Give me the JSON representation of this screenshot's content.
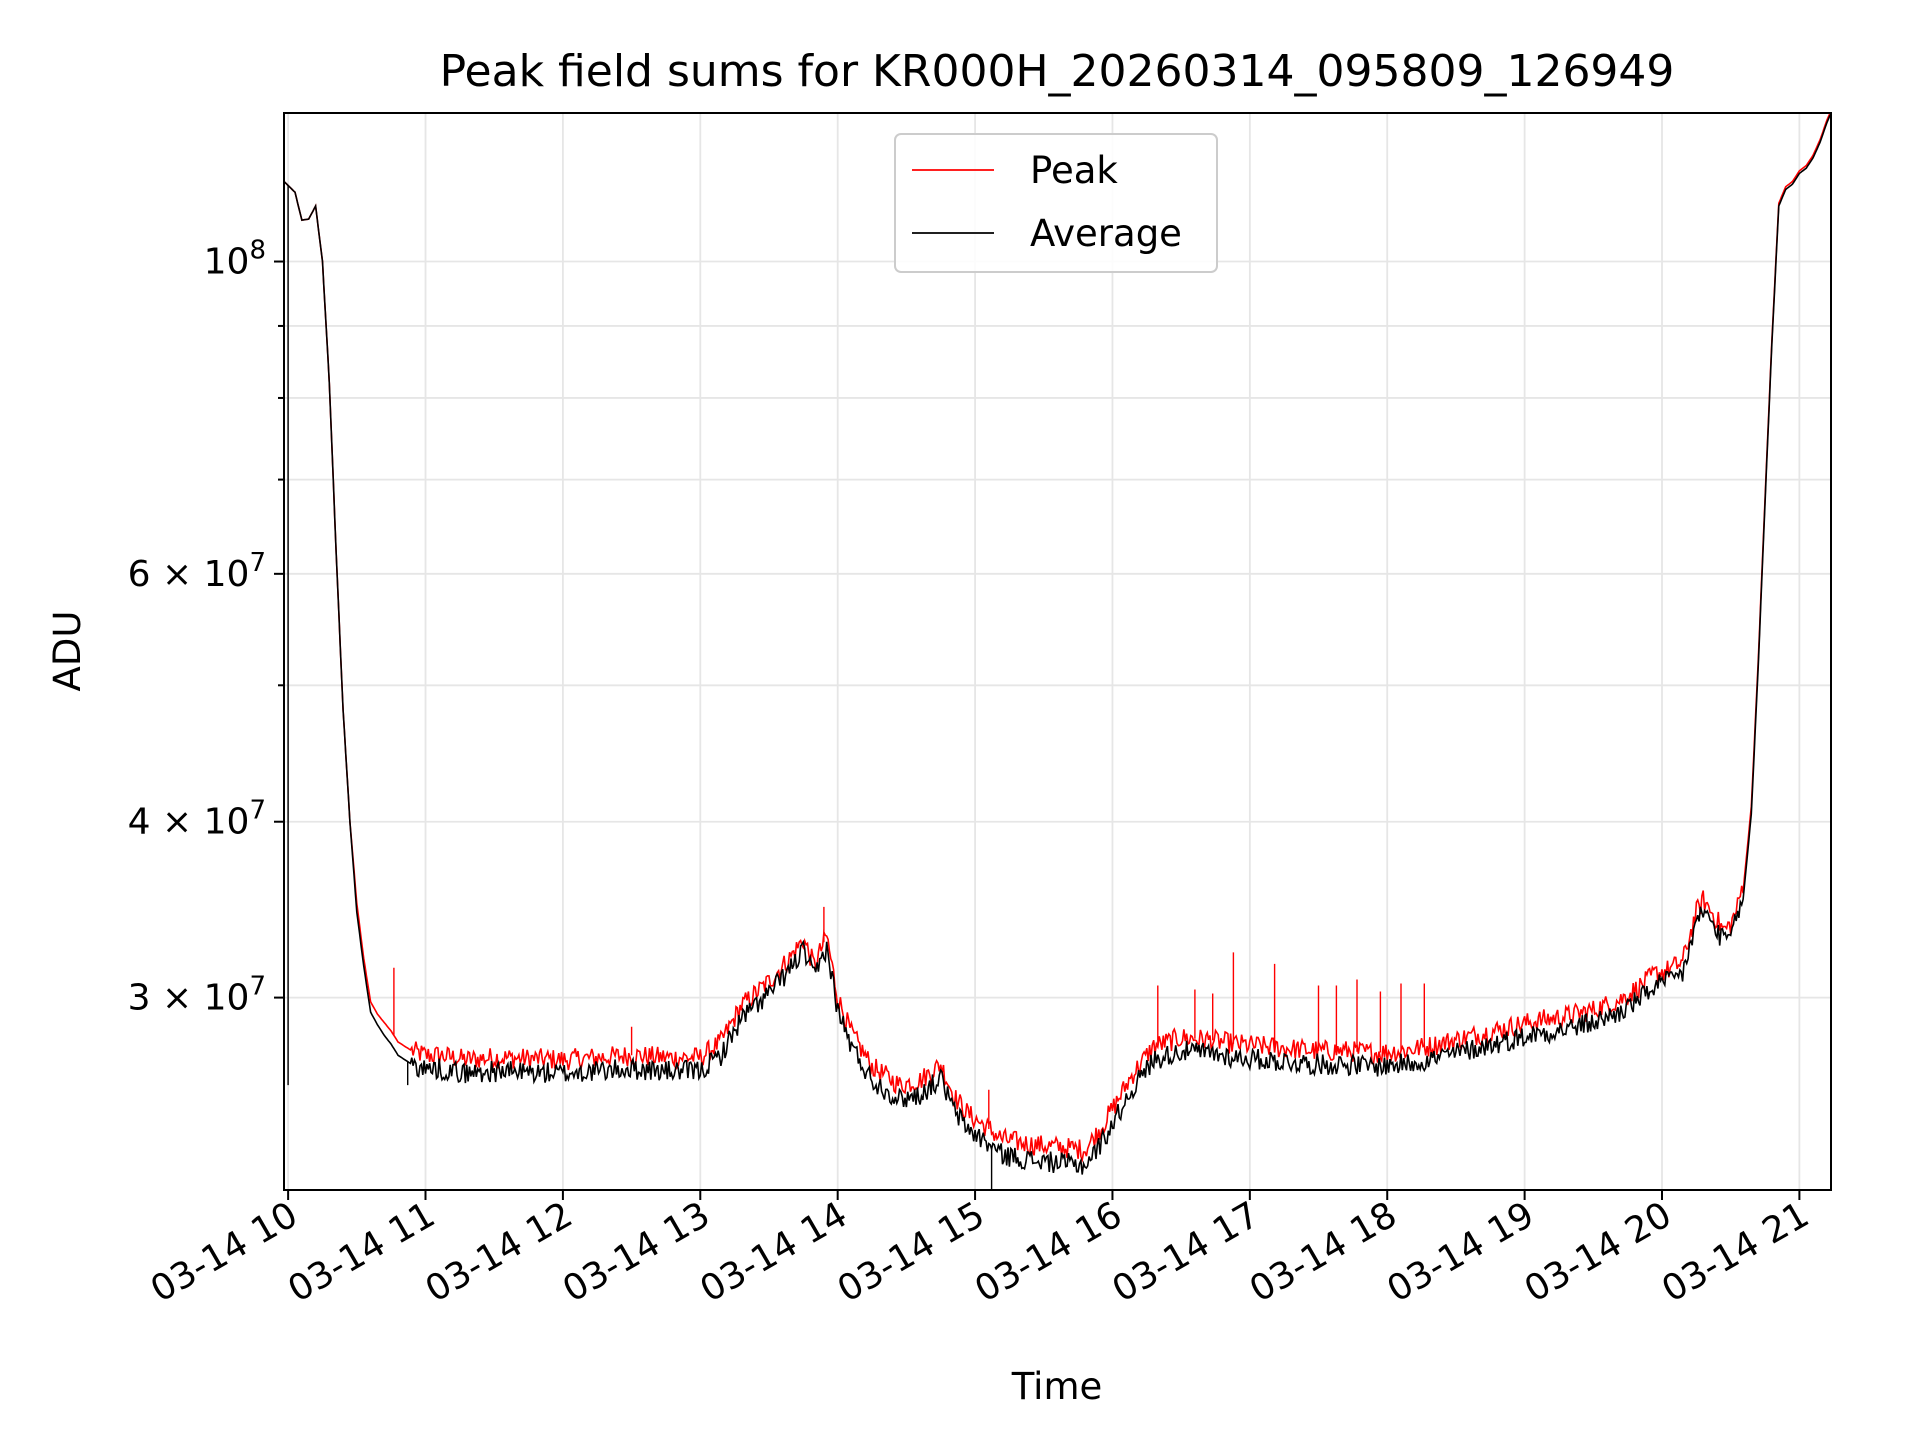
{
  "chart_data": {
    "type": "line",
    "title": "Peak field sums for KR000H_20260314_095809_126949",
    "xlabel": "Time",
    "ylabel": "ADU",
    "yscale": "log",
    "xlim": [
      9.97,
      21.23
    ],
    "ylim": [
      21900000,
      127500000
    ],
    "grid": true,
    "legend_position": "upper-center",
    "x_ticks": [
      {
        "value": 10,
        "label": "03-14 10"
      },
      {
        "value": 11,
        "label": "03-14 11"
      },
      {
        "value": 12,
        "label": "03-14 12"
      },
      {
        "value": 13,
        "label": "03-14 13"
      },
      {
        "value": 14,
        "label": "03-14 14"
      },
      {
        "value": 15,
        "label": "03-14 15"
      },
      {
        "value": 16,
        "label": "03-14 16"
      },
      {
        "value": 17,
        "label": "03-14 17"
      },
      {
        "value": 18,
        "label": "03-14 18"
      },
      {
        "value": 19,
        "label": "03-14 19"
      },
      {
        "value": 20,
        "label": "03-14 20"
      },
      {
        "value": 21,
        "label": "03-14 21"
      }
    ],
    "y_ticks": [
      {
        "value": 30000000,
        "mantissa": "3",
        "exponent": "7"
      },
      {
        "value": 40000000,
        "mantissa": "4",
        "exponent": "7"
      },
      {
        "value": 60000000,
        "mantissa": "6",
        "exponent": "7"
      },
      {
        "value": 100000000,
        "mantissa": "",
        "exponent": "8"
      }
    ],
    "y_minor_ticks": [
      50000000,
      70000000,
      80000000,
      90000000
    ],
    "series": [
      {
        "name": "Peak",
        "color": "#ff0000",
        "x": [
          9.97,
          10.05,
          10.1,
          10.15,
          10.2,
          10.25,
          10.3,
          10.35,
          10.4,
          10.45,
          10.5,
          10.55,
          10.6,
          10.65,
          10.7,
          10.75,
          10.8,
          10.9,
          11.0,
          11.1,
          11.2,
          11.3,
          11.5,
          11.75,
          12.0,
          12.25,
          12.5,
          12.75,
          13.0,
          13.15,
          13.3,
          13.5,
          13.65,
          13.75,
          13.83,
          13.92,
          14.0,
          14.1,
          14.25,
          14.45,
          14.6,
          14.75,
          14.85,
          14.95,
          15.05,
          15.2,
          15.4,
          15.6,
          15.8,
          15.9,
          16.0,
          16.15,
          16.3,
          16.5,
          16.7,
          16.9,
          17.1,
          17.3,
          17.5,
          17.7,
          17.9,
          18.1,
          18.3,
          18.5,
          18.7,
          18.9,
          19.1,
          19.3,
          19.5,
          19.7,
          19.85,
          19.95,
          20.05,
          20.15,
          20.25,
          20.3,
          20.38,
          20.45,
          20.5,
          20.55,
          20.6,
          20.65,
          20.7,
          20.75,
          20.8,
          20.85,
          20.9,
          20.95,
          21.0,
          21.05,
          21.1,
          21.15,
          21.2,
          21.23
        ],
        "values": [
          114000000,
          112000000,
          107000000,
          107200000,
          109500000,
          100000000,
          82000000,
          62000000,
          48000000,
          40000000,
          35000000,
          32000000,
          29800000,
          29200000,
          28800000,
          28400000,
          27900000,
          27500000,
          27300000,
          27300000,
          27200000,
          27100000,
          27200000,
          27150000,
          27100000,
          27200000,
          27300000,
          27200000,
          27200000,
          27900000,
          29600000,
          30800000,
          32000000,
          33000000,
          31600000,
          33200000,
          30000000,
          28300000,
          26800000,
          26000000,
          26200000,
          26900000,
          25500000,
          24800000,
          24400000,
          23800000,
          23600000,
          23500000,
          23400000,
          24100000,
          25000000,
          26500000,
          27700000,
          28100000,
          28000000,
          27800000,
          27700000,
          27600000,
          27500000,
          27500000,
          27400000,
          27500000,
          27700000,
          28000000,
          28300000,
          28600000,
          28900000,
          29100000,
          29400000,
          29900000,
          30600000,
          31200000,
          31400000,
          31800000,
          34500000,
          35200000,
          34300000,
          33500000,
          33800000,
          34800000,
          36500000,
          41000000,
          52000000,
          68000000,
          88000000,
          110000000,
          113000000,
          114000000,
          116000000,
          117000000,
          119000000,
          122000000,
          126000000,
          128000000
        ],
        "spikes": [
          {
            "x": 10.77,
            "value": 31500000
          },
          {
            "x": 12.5,
            "value": 28600000
          },
          {
            "x": 13.9,
            "value": 34800000
          },
          {
            "x": 15.1,
            "value": 25800000
          },
          {
            "x": 16.33,
            "value": 30600000
          },
          {
            "x": 16.6,
            "value": 30400000
          },
          {
            "x": 16.73,
            "value": 30200000
          },
          {
            "x": 16.88,
            "value": 32300000
          },
          {
            "x": 17.18,
            "value": 31700000
          },
          {
            "x": 17.5,
            "value": 30600000
          },
          {
            "x": 17.63,
            "value": 30600000
          },
          {
            "x": 17.78,
            "value": 30900000
          },
          {
            "x": 17.95,
            "value": 30300000
          },
          {
            "x": 18.1,
            "value": 30700000
          },
          {
            "x": 18.27,
            "value": 30700000
          }
        ]
      },
      {
        "name": "Average",
        "color": "#000000",
        "x": [
          9.97,
          10.05,
          10.1,
          10.15,
          10.2,
          10.25,
          10.3,
          10.35,
          10.4,
          10.45,
          10.5,
          10.55,
          10.6,
          10.65,
          10.7,
          10.75,
          10.8,
          10.9,
          11.0,
          11.1,
          11.2,
          11.3,
          11.5,
          11.75,
          12.0,
          12.25,
          12.5,
          12.75,
          13.0,
          13.15,
          13.3,
          13.5,
          13.65,
          13.75,
          13.83,
          13.92,
          14.0,
          14.1,
          14.25,
          14.45,
          14.6,
          14.75,
          14.85,
          14.95,
          15.05,
          15.2,
          15.4,
          15.6,
          15.8,
          15.9,
          16.0,
          16.15,
          16.3,
          16.5,
          16.7,
          16.9,
          17.1,
          17.3,
          17.5,
          17.7,
          17.9,
          18.1,
          18.3,
          18.5,
          18.7,
          18.9,
          19.1,
          19.3,
          19.5,
          19.7,
          19.85,
          19.95,
          20.05,
          20.15,
          20.25,
          20.3,
          20.38,
          20.45,
          20.5,
          20.55,
          20.6,
          20.65,
          20.7,
          20.75,
          20.8,
          20.85,
          20.9,
          20.95,
          21.0,
          21.05,
          21.1,
          21.15,
          21.2,
          21.23
        ],
        "values": [
          114000000,
          112000000,
          107000000,
          107200000,
          109500000,
          100000000,
          82000000,
          62000000,
          48000000,
          40000000,
          34500000,
          31600000,
          29300000,
          28700000,
          28200000,
          27800000,
          27300000,
          26900000,
          26700000,
          26700000,
          26600000,
          26500000,
          26600000,
          26550000,
          26500000,
          26600000,
          26700000,
          26600000,
          26600000,
          27300000,
          29000000,
          30200000,
          31400000,
          32400000,
          31000000,
          32600000,
          29400000,
          27700000,
          26200000,
          25400000,
          25600000,
          26300000,
          24900000,
          24200000,
          23800000,
          23200000,
          23000000,
          22900000,
          22800000,
          23500000,
          24400000,
          25900000,
          27100000,
          27500000,
          27400000,
          27200000,
          27100000,
          27000000,
          26900000,
          26900000,
          26800000,
          26900000,
          27100000,
          27400000,
          27700000,
          28000000,
          28300000,
          28500000,
          28800000,
          29300000,
          30000000,
          30600000,
          30800000,
          31200000,
          33900000,
          34600000,
          33700000,
          32900000,
          33200000,
          34200000,
          36000000,
          40500000,
          51500000,
          67500000,
          87500000,
          109500000,
          112500000,
          113500000,
          115500000,
          116500000,
          118500000,
          121500000,
          125500000,
          127500000
        ],
        "spikes": [
          {
            "x": 10.0,
            "value": 26000000
          },
          {
            "x": 10.87,
            "value": 26000000
          },
          {
            "x": 15.12,
            "value": 21900000
          }
        ]
      }
    ]
  }
}
